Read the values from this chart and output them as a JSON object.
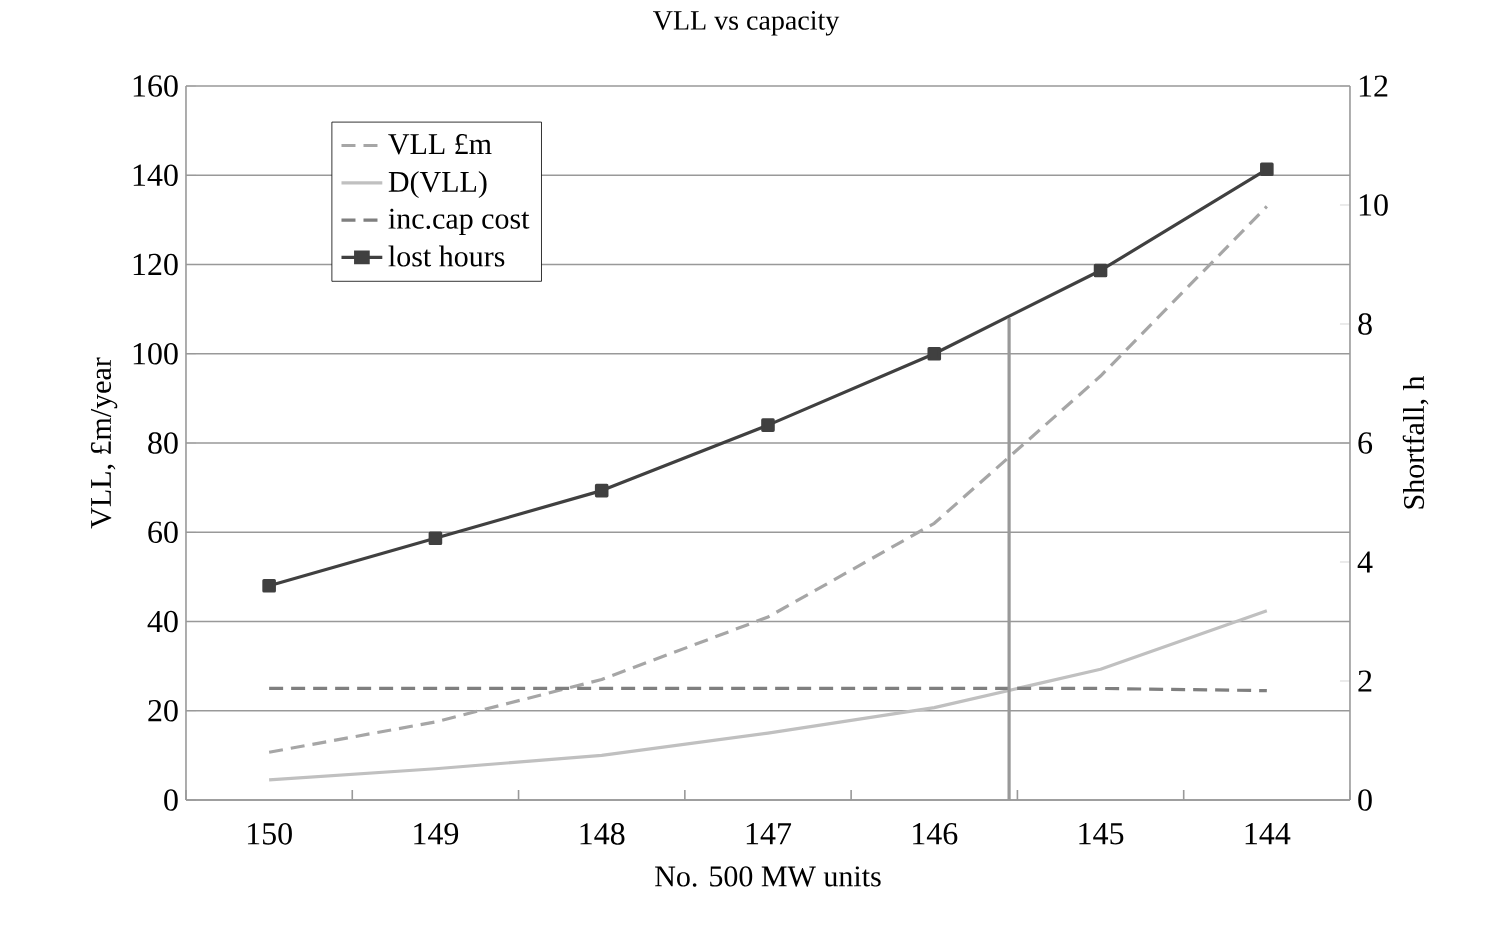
{
  "chart_data": {
    "type": "line",
    "title": "VLL vs capacity",
    "xlabel": "No. 500 MW units",
    "ylabel": "VLL, £m/year",
    "y2label": "Shortfall, h",
    "x": [
      150,
      149,
      148,
      147,
      146,
      145,
      144
    ],
    "xlim": [
      150.5,
      143.5
    ],
    "xticks": [
      150,
      149,
      148,
      147,
      146,
      145,
      144,
      {
        "value": 150.5,
        "label": null
      },
      {
        "value": 149.5,
        "label": null
      },
      {
        "value": 148.5,
        "label": null
      },
      {
        "value": 147.5,
        "label": null
      },
      {
        "value": 146.5,
        "label": null
      },
      {
        "value": 145.5,
        "label": null
      },
      {
        "value": 144.5,
        "label": null
      },
      {
        "value": 143.5,
        "label": null
      }
    ],
    "ylim": [
      0,
      160
    ],
    "yticks": [
      0,
      20,
      40,
      60,
      80,
      100,
      120,
      140,
      160
    ],
    "y2lim": [
      0,
      12
    ],
    "y2ticks": [
      0,
      2,
      4,
      6,
      8,
      10,
      12
    ],
    "grid": "y",
    "legend": "top left",
    "series": [
      {
        "name": "VLL £m",
        "color": "#a6a6a6",
        "line_style": "dashed",
        "marker": "none",
        "values": [
          10.7,
          17.5,
          27,
          41,
          62,
          95,
          133
        ]
      },
      {
        "name": "D(VLL)",
        "color": "#c0c0c0",
        "line_style": "solid",
        "marker": "none",
        "values": [
          4.5,
          7,
          10,
          15,
          20.7,
          29.3,
          42.4
        ]
      },
      {
        "name": "inc.cap cost",
        "color": "#7f7f7f",
        "line_style": "dashed",
        "marker": "none",
        "values": [
          25,
          25,
          25,
          25,
          25,
          25,
          24.5
        ]
      },
      {
        "name": "lost hours",
        "color": "#404040",
        "line_style": "solid",
        "marker": "square",
        "axis": "y2",
        "values": [
          3.6,
          4.4,
          5.2,
          6.3,
          7.5,
          8.9,
          10.6
        ]
      },
      {
        "color": "#999999",
        "line_style": "solid",
        "marker": "none",
        "axis": "y2",
        "x": [
          145.55,
          145.55
        ],
        "values": [
          0,
          8.1
        ]
      }
    ]
  }
}
